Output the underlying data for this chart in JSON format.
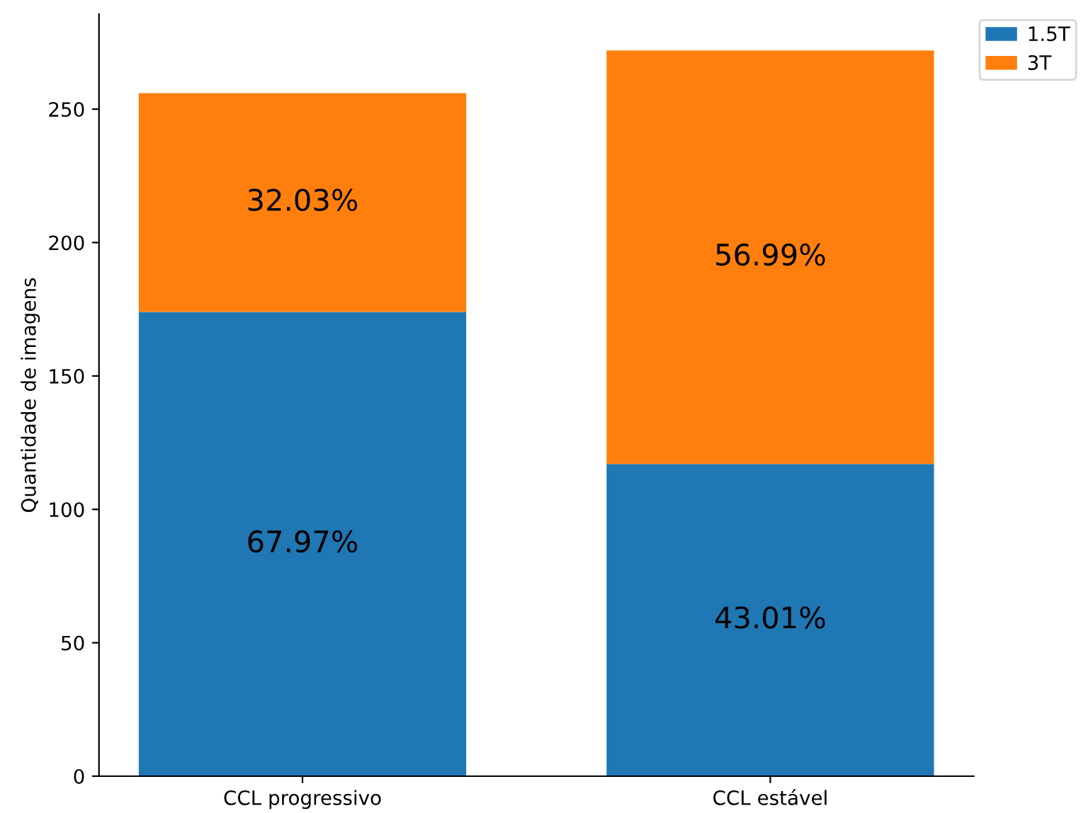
{
  "chart_data": {
    "type": "bar",
    "stacked": true,
    "ylabel": "Quantidade de imagens",
    "categories": [
      "CCL progressivo",
      "CCL estável"
    ],
    "series": [
      {
        "name": "1.5T",
        "color": "#1f77b4",
        "values": [
          174,
          117
        ]
      },
      {
        "name": "3T",
        "color": "#ff7f0e",
        "values": [
          82,
          155
        ]
      }
    ],
    "annotations": [
      "67.97%",
      "43.01%",
      "32.03%",
      "56.99%"
    ],
    "ylim": [
      0,
      285.6
    ],
    "yticks": [
      0,
      50,
      100,
      150,
      200,
      250
    ],
    "grid": false,
    "legend": "top right"
  }
}
